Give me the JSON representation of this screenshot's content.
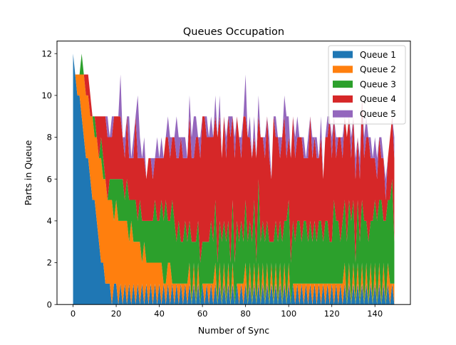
{
  "chart_data": {
    "type": "area",
    "stacked": true,
    "title": "Queues Occupation",
    "xlabel": "Number of Sync",
    "ylabel": "Parts in Queue",
    "xlim": [
      -7.45,
      156.45
    ],
    "ylim": [
      0,
      12.6
    ],
    "xticks": [
      0,
      20,
      40,
      60,
      80,
      100,
      120,
      140
    ],
    "yticks": [
      0,
      2,
      4,
      6,
      8,
      10,
      12
    ],
    "grid": false,
    "legend_position": "top-right",
    "x": [
      0,
      1,
      2,
      3,
      4,
      5,
      6,
      7,
      8,
      9,
      10,
      11,
      12,
      13,
      14,
      15,
      16,
      17,
      18,
      19,
      20,
      21,
      22,
      23,
      24,
      25,
      26,
      27,
      28,
      29,
      30,
      31,
      32,
      33,
      34,
      35,
      36,
      37,
      38,
      39,
      40,
      41,
      42,
      43,
      44,
      45,
      46,
      47,
      48,
      49,
      50,
      51,
      52,
      53,
      54,
      55,
      56,
      57,
      58,
      59,
      60,
      61,
      62,
      63,
      64,
      65,
      66,
      67,
      68,
      69,
      70,
      71,
      72,
      73,
      74,
      75,
      76,
      77,
      78,
      79,
      80,
      81,
      82,
      83,
      84,
      85,
      86,
      87,
      88,
      89,
      90,
      91,
      92,
      93,
      94,
      95,
      96,
      97,
      98,
      99,
      100,
      101,
      102,
      103,
      104,
      105,
      106,
      107,
      108,
      109,
      110,
      111,
      112,
      113,
      114,
      115,
      116,
      117,
      118,
      119,
      120,
      121,
      122,
      123,
      124,
      125,
      126,
      127,
      128,
      129,
      130,
      131,
      132,
      133,
      134,
      135,
      136,
      137,
      138,
      139,
      140,
      141,
      142,
      143,
      144,
      145,
      146,
      147,
      148,
      149
    ],
    "series": [
      {
        "name": "Queue 1",
        "color": "#1f77b4",
        "values": [
          12,
          11,
          10,
          10,
          9,
          8,
          7,
          7,
          6,
          5,
          5,
          4,
          3,
          2,
          2,
          1,
          1,
          1,
          0,
          1,
          1,
          0,
          1,
          0,
          1,
          0,
          1,
          0,
          1,
          0,
          1,
          0,
          1,
          0,
          1,
          0,
          1,
          0,
          1,
          0,
          1,
          0,
          1,
          0,
          1,
          0,
          1,
          0,
          1,
          0,
          1,
          0,
          1,
          0,
          1,
          0,
          1,
          0,
          1,
          0,
          1,
          0,
          1,
          0,
          1,
          0,
          1,
          0,
          1,
          0,
          1,
          0,
          1,
          0,
          1,
          0,
          1,
          0,
          1,
          0,
          1,
          0,
          1,
          0,
          1,
          0,
          1,
          0,
          1,
          0,
          1,
          0,
          1,
          0,
          1,
          0,
          1,
          0,
          1,
          0,
          1,
          0,
          1,
          0,
          1,
          0,
          1,
          0,
          1,
          0,
          1,
          0,
          1,
          0,
          1,
          0,
          1,
          0,
          1,
          0,
          1,
          0,
          1,
          0,
          1,
          0,
          1,
          0,
          1,
          0,
          1,
          0,
          1,
          0,
          1,
          0,
          1,
          0,
          1,
          0,
          1,
          0,
          1,
          0,
          1,
          0,
          1,
          0,
          1,
          0
        ]
      },
      {
        "name": "Queue 2",
        "color": "#ff7f0e",
        "values": [
          0,
          0,
          1,
          1,
          2,
          3,
          3,
          3,
          3,
          4,
          3,
          4,
          4,
          5,
          4,
          5,
          4,
          4,
          5,
          3,
          4,
          4,
          3,
          4,
          3,
          4,
          2,
          4,
          2,
          3,
          2,
          3,
          1,
          3,
          1,
          2,
          1,
          2,
          1,
          2,
          1,
          2,
          0,
          1,
          1,
          2,
          0,
          1,
          0,
          1,
          0,
          1,
          0,
          1,
          1,
          0,
          1,
          0,
          1,
          0,
          0,
          1,
          0,
          1,
          0,
          1,
          1,
          0,
          1,
          0,
          1,
          0,
          1,
          0,
          1,
          0,
          0,
          1,
          0,
          1,
          1,
          0,
          1,
          0,
          1,
          0,
          1,
          0,
          1,
          0,
          1,
          0,
          1,
          0,
          1,
          0,
          1,
          0,
          1,
          0,
          1,
          0,
          0,
          1,
          0,
          1,
          0,
          1,
          0,
          1,
          0,
          1,
          0,
          1,
          0,
          1,
          0,
          1,
          0,
          1,
          0,
          1,
          0,
          1,
          0,
          1,
          1,
          0,
          1,
          0,
          1,
          0,
          1,
          0,
          1,
          0,
          1,
          0,
          1,
          0,
          1,
          0,
          1,
          0,
          1,
          0,
          1,
          1,
          0,
          1
        ]
      },
      {
        "name": "Queue 3",
        "color": "#2ca02c",
        "values": [
          0,
          0,
          0,
          0,
          1,
          0,
          0,
          0,
          0,
          0,
          1,
          0,
          0,
          1,
          1,
          0,
          0,
          1,
          1,
          2,
          1,
          2,
          2,
          2,
          1,
          2,
          2,
          1,
          2,
          2,
          1,
          2,
          2,
          1,
          2,
          2,
          2,
          2,
          3,
          2,
          2,
          3,
          3,
          4,
          2,
          2,
          4,
          3,
          2,
          3,
          2,
          2,
          3,
          2,
          2,
          3,
          1,
          3,
          2,
          2,
          2,
          2,
          2,
          2,
          3,
          2,
          3,
          2,
          2,
          3,
          2,
          3,
          2,
          2,
          3,
          2,
          3,
          2,
          3,
          2,
          3,
          3,
          2,
          3,
          3,
          2,
          4,
          3,
          2,
          3,
          2,
          3,
          1,
          3,
          2,
          3,
          2,
          3,
          2,
          4,
          3,
          2,
          3,
          2,
          3,
          3,
          2,
          3,
          3,
          2,
          3,
          2,
          3,
          2,
          3,
          3,
          2,
          3,
          3,
          2,
          2,
          4,
          3,
          3,
          2,
          3,
          3,
          3,
          3,
          4,
          3,
          2,
          3,
          3,
          3,
          4,
          2,
          3,
          2,
          4,
          3,
          4,
          3,
          5,
          2,
          4,
          3,
          4,
          5,
          2
        ]
      },
      {
        "name": "Queue 4",
        "color": "#d62728",
        "values": [
          0,
          0,
          0,
          0,
          0,
          0,
          1,
          1,
          1,
          0,
          0,
          1,
          2,
          1,
          2,
          3,
          3,
          2,
          2,
          3,
          3,
          3,
          3,
          2,
          2,
          3,
          2,
          2,
          2,
          4,
          3,
          2,
          3,
          3,
          2,
          3,
          3,
          2,
          2,
          3,
          3,
          2,
          3,
          3,
          4,
          3,
          3,
          4,
          4,
          3,
          5,
          4,
          3,
          4,
          5,
          4,
          4,
          5,
          4,
          5,
          6,
          6,
          5,
          5,
          4,
          5,
          4,
          6,
          5,
          4,
          5,
          4,
          5,
          6,
          4,
          5,
          5,
          5,
          3,
          6,
          4,
          5,
          4,
          4,
          3,
          5,
          3,
          5,
          4,
          4,
          5,
          4,
          3,
          6,
          4,
          5,
          3,
          5,
          5,
          3,
          3,
          5,
          5,
          4,
          4,
          4,
          5,
          3,
          3,
          4,
          5,
          4,
          4,
          4,
          3,
          4,
          3,
          4,
          4,
          6,
          4,
          4,
          3,
          4,
          5,
          3,
          4,
          5,
          4,
          3,
          4,
          4,
          3,
          3,
          5,
          3,
          4,
          5,
          3,
          3,
          2,
          2,
          3,
          2,
          3,
          1,
          2,
          3,
          3,
          4
        ]
      },
      {
        "name": "Queue 5",
        "color": "#9467bd",
        "values": [
          0,
          0,
          0,
          0,
          0,
          0,
          0,
          0,
          0,
          0,
          0,
          0,
          0,
          0,
          0,
          0,
          1,
          0,
          1,
          0,
          0,
          0,
          2,
          0,
          1,
          0,
          2,
          0,
          1,
          0,
          3,
          1,
          0,
          1,
          0,
          0,
          0,
          1,
          0,
          1,
          0,
          1,
          0,
          0,
          1,
          1,
          0,
          0,
          2,
          1,
          0,
          1,
          1,
          0,
          1,
          1,
          2,
          1,
          0,
          1,
          0,
          0,
          1,
          0,
          1,
          0,
          1,
          0,
          1,
          0,
          0,
          1,
          0,
          1,
          0,
          1,
          0,
          0,
          1,
          0,
          2,
          0,
          1,
          0,
          1,
          0,
          1,
          0,
          0,
          1,
          0,
          1,
          0,
          0,
          1,
          0,
          1,
          0,
          1,
          2,
          1,
          0,
          0,
          1,
          1,
          0,
          0,
          1,
          0,
          1,
          0,
          1,
          0,
          1,
          0,
          1,
          0,
          0,
          1,
          0,
          1,
          0,
          1,
          0,
          0,
          1,
          0,
          0,
          0,
          1,
          0,
          1,
          0,
          1,
          0,
          1,
          1,
          0,
          1,
          0,
          1,
          1,
          0,
          1,
          0,
          1,
          0,
          0,
          0,
          1
        ]
      }
    ]
  }
}
